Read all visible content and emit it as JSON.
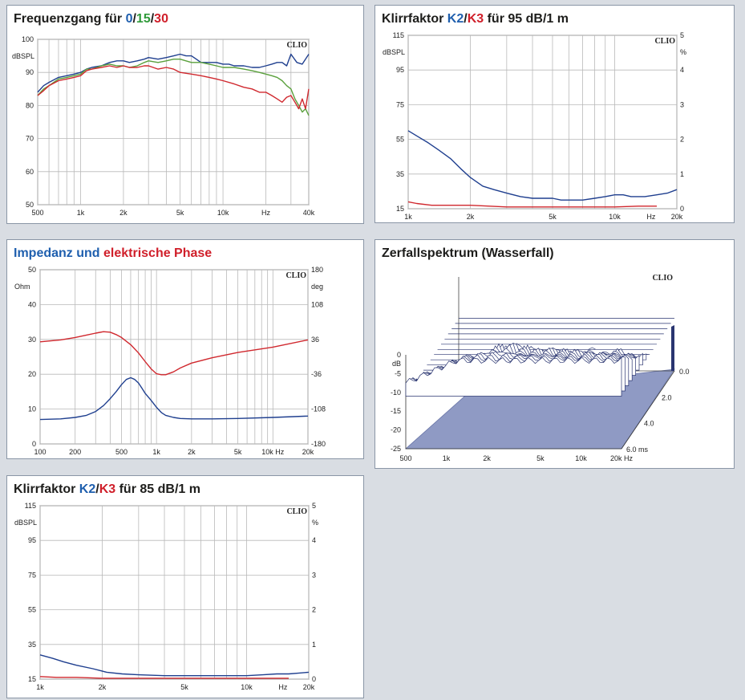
{
  "colors": {
    "blue": "#1f3f8f",
    "green": "#5aa03c",
    "red": "#d0282e",
    "grid": "#b9b9b9",
    "waterfall": "#8f9ac4"
  },
  "panels": {
    "freq": {
      "title_prefix": "Frequenzgang für ",
      "t1": "0",
      "s1": "/",
      "t2": "15",
      "s2": "/",
      "t3": "30",
      "brand": "CLIO"
    },
    "k95": {
      "title_prefix": "Klirrfaktor ",
      "t1": "K2",
      "s1": "/",
      "t2": "K3",
      "title_suffix": " für 95 dB/1 m",
      "brand": "CLIO"
    },
    "imp": {
      "t1": "Impedanz und ",
      "t2": "elektrische Phase",
      "brand": "CLIO"
    },
    "wf": {
      "title": "Zerfallspektrum (Wasserfall)",
      "brand": "CLIO"
    },
    "k85": {
      "title_prefix": "Klirrfaktor ",
      "t1": "K2",
      "s1": "/",
      "t2": "K3",
      "title_suffix": " für 85 dB/1 m",
      "brand": "CLIO"
    }
  },
  "chart_data": [
    {
      "id": "freq",
      "type": "line",
      "xscale": "log",
      "xlim": [
        500,
        40000
      ],
      "ylim": [
        50,
        100
      ],
      "ylabel": "dBSPL",
      "xunit": "Hz",
      "xticks": [
        {
          "v": 500,
          "l": "500"
        },
        {
          "v": 1000,
          "l": "1k"
        },
        {
          "v": 2000,
          "l": "2k"
        },
        {
          "v": 5000,
          "l": "5k"
        },
        {
          "v": 10000,
          "l": "10k"
        },
        {
          "v": 20000,
          "l": "Hz"
        },
        {
          "v": 40000,
          "l": "40k"
        }
      ],
      "yticks": [
        {
          "v": 100,
          "l": "100"
        },
        {
          "v": 90,
          "l": "90"
        },
        {
          "v": 80,
          "l": "80"
        },
        {
          "v": 70,
          "l": "70"
        },
        {
          "v": 60,
          "l": "60"
        },
        {
          "v": 50,
          "l": "50"
        }
      ],
      "series": [
        {
          "name": "0",
          "color": "blue",
          "x": [
            500,
            550,
            600,
            700,
            800,
            900,
            1000,
            1100,
            1200,
            1400,
            1600,
            1800,
            2000,
            2200,
            2500,
            2800,
            3000,
            3500,
            4000,
            4500,
            5000,
            5500,
            6000,
            6500,
            7000,
            8000,
            9000,
            10000,
            11000,
            12000,
            14000,
            16000,
            18000,
            20000,
            22000,
            24000,
            26000,
            28000,
            30000,
            33000,
            36000,
            40000
          ],
          "y": [
            84,
            86,
            87,
            88.5,
            89,
            89.5,
            90,
            91,
            91.5,
            92,
            93,
            93.5,
            93.5,
            93,
            93.5,
            94,
            94.5,
            94,
            94.5,
            95,
            95.5,
            95,
            95,
            94,
            93,
            93,
            93,
            92.5,
            92.5,
            92,
            92,
            91.5,
            91.5,
            92,
            92.5,
            93,
            93,
            92,
            95.5,
            93,
            92.5,
            95.5
          ]
        },
        {
          "name": "15",
          "color": "green",
          "x": [
            500,
            550,
            600,
            700,
            800,
            900,
            1000,
            1100,
            1200,
            1400,
            1600,
            1800,
            2000,
            2200,
            2500,
            2800,
            3000,
            3500,
            4000,
            4500,
            5000,
            6000,
            7000,
            8000,
            9000,
            10000,
            12000,
            14000,
            16000,
            18000,
            20000,
            22000,
            24000,
            26000,
            28000,
            30000,
            32000,
            34000,
            36000,
            38000,
            40000
          ],
          "y": [
            83,
            85,
            86,
            88,
            88.5,
            89,
            89.5,
            91,
            91,
            92,
            92.5,
            92,
            92,
            91.5,
            92,
            93,
            93.5,
            93,
            93.5,
            94,
            94,
            93,
            93,
            92.5,
            92,
            91.5,
            91.5,
            91,
            90.5,
            90,
            89.5,
            89,
            88.5,
            87.5,
            86,
            85,
            82,
            80,
            78,
            79,
            77
          ]
        },
        {
          "name": "30",
          "color": "red",
          "x": [
            500,
            550,
            600,
            700,
            800,
            900,
            1000,
            1100,
            1200,
            1400,
            1600,
            1800,
            2000,
            2200,
            2500,
            2800,
            3000,
            3500,
            4000,
            4500,
            5000,
            6000,
            7000,
            8000,
            9000,
            10000,
            12000,
            14000,
            16000,
            18000,
            20000,
            22000,
            24000,
            26000,
            28000,
            30000,
            32000,
            34000,
            36000,
            38000,
            40000
          ],
          "y": [
            83,
            84.5,
            86,
            87.5,
            88,
            88.5,
            89,
            90.5,
            91,
            91.5,
            92,
            91.5,
            92,
            91.5,
            91.5,
            92,
            92,
            91,
            91.5,
            91,
            90,
            89.5,
            89,
            88.5,
            88,
            87.5,
            86.5,
            85.5,
            85,
            84,
            84,
            83,
            82,
            81,
            82.5,
            83,
            81,
            79,
            82,
            79,
            85
          ]
        }
      ]
    },
    {
      "id": "k95",
      "type": "line",
      "xscale": "log",
      "xlim": [
        1000,
        20000
      ],
      "ylim": [
        15,
        115
      ],
      "y2lim": [
        0,
        5
      ],
      "ylabel": "dBSPL",
      "y2label": "%",
      "xunit": "Hz",
      "xticks": [
        {
          "v": 1000,
          "l": "1k"
        },
        {
          "v": 2000,
          "l": "2k"
        },
        {
          "v": 5000,
          "l": "5k"
        },
        {
          "v": 10000,
          "l": "10k"
        },
        {
          "v": 15000,
          "l": "Hz"
        },
        {
          "v": 20000,
          "l": "20k"
        }
      ],
      "yticks": [
        {
          "v": 115,
          "l": "115"
        },
        {
          "v": 95,
          "l": "95"
        },
        {
          "v": 75,
          "l": "75"
        },
        {
          "v": 55,
          "l": "55"
        },
        {
          "v": 35,
          "l": "35"
        },
        {
          "v": 15,
          "l": "15"
        }
      ],
      "y2ticks": [
        {
          "v": 5,
          "l": "5"
        },
        {
          "v": 4,
          "l": "4"
        },
        {
          "v": 3,
          "l": "3"
        },
        {
          "v": 2,
          "l": "2"
        },
        {
          "v": 1,
          "l": "1"
        },
        {
          "v": 0,
          "l": "0"
        }
      ],
      "series": [
        {
          "name": "K2",
          "color": "blue",
          "x": [
            1000,
            1100,
            1250,
            1400,
            1600,
            1800,
            2000,
            2300,
            2600,
            3000,
            3500,
            4000,
            4500,
            5000,
            5500,
            6000,
            7000,
            8000,
            9000,
            10000,
            11000,
            12000,
            14000,
            16000,
            18000,
            20000
          ],
          "y": [
            60,
            57,
            53,
            49,
            44,
            38,
            33,
            28,
            26,
            24,
            22,
            21,
            21,
            21,
            20,
            20,
            20,
            21,
            22,
            23,
            23,
            22,
            22,
            23,
            24,
            26
          ]
        },
        {
          "name": "K3",
          "color": "red",
          "x": [
            1000,
            1100,
            1300,
            1600,
            2000,
            3000,
            4000,
            6000,
            8000,
            10000,
            13000,
            16000
          ],
          "y": [
            19,
            18,
            17,
            17,
            17,
            16,
            16,
            16,
            16,
            16,
            16.5,
            16.5
          ]
        }
      ]
    },
    {
      "id": "imp",
      "type": "line",
      "xscale": "log",
      "xlim": [
        100,
        20000
      ],
      "ylim": [
        0,
        50
      ],
      "y2lim": [
        -180,
        180
      ],
      "ylabel": "Ohm",
      "y2label": "deg",
      "xticks": [
        {
          "v": 100,
          "l": "100"
        },
        {
          "v": 200,
          "l": "200"
        },
        {
          "v": 500,
          "l": "500"
        },
        {
          "v": 1000,
          "l": "1k"
        },
        {
          "v": 2000,
          "l": "2k"
        },
        {
          "v": 5000,
          "l": "5k"
        },
        {
          "v": 10000,
          "l": "10k Hz"
        },
        {
          "v": 20000,
          "l": "20k"
        }
      ],
      "yticks": [
        {
          "v": 50,
          "l": "50"
        },
        {
          "v": 40,
          "l": "40"
        },
        {
          "v": 30,
          "l": "30"
        },
        {
          "v": 20,
          "l": "20"
        },
        {
          "v": 10,
          "l": "10"
        },
        {
          "v": 0,
          "l": "0"
        }
      ],
      "y2ticks": [
        {
          "v": 180,
          "l": "180"
        },
        {
          "v": 108,
          "l": "108"
        },
        {
          "v": 36,
          "l": "36"
        },
        {
          "v": -36,
          "l": "-36"
        },
        {
          "v": -108,
          "l": "-108"
        },
        {
          "v": -180,
          "l": "-180"
        }
      ],
      "series": [
        {
          "name": "Impedanz",
          "color": "blue",
          "x": [
            100,
            150,
            200,
            250,
            300,
            350,
            400,
            450,
            500,
            550,
            600,
            650,
            700,
            750,
            800,
            900,
            1000,
            1100,
            1200,
            1400,
            1600,
            2000,
            3000,
            5000,
            10000,
            20000
          ],
          "y": [
            7,
            7.2,
            7.6,
            8.2,
            9.3,
            11,
            13,
            15,
            17,
            18.5,
            19,
            18.5,
            17.5,
            16,
            14.5,
            12.5,
            10.5,
            9,
            8.2,
            7.6,
            7.3,
            7.2,
            7.2,
            7.3,
            7.6,
            8
          ]
        },
        {
          "name": "Phase",
          "color": "red",
          "y2": true,
          "x": [
            100,
            150,
            200,
            250,
            300,
            350,
            400,
            450,
            500,
            600,
            700,
            800,
            900,
            1000,
            1100,
            1200,
            1400,
            1600,
            2000,
            3000,
            5000,
            10000,
            20000
          ],
          "y": [
            31,
            35,
            40,
            45,
            49,
            52,
            51,
            46,
            40,
            25,
            8,
            -10,
            -25,
            -35,
            -37,
            -37,
            -31,
            -23,
            -13,
            -2,
            9,
            20,
            35
          ]
        }
      ]
    },
    {
      "id": "waterfall",
      "type": "area",
      "xscale": "log",
      "xlim": [
        500,
        20000
      ],
      "ylim": [
        -25,
        0
      ],
      "ylabel": "dB",
      "xticks": [
        {
          "v": 500,
          "l": "500"
        },
        {
          "v": 1000,
          "l": "1k"
        },
        {
          "v": 2000,
          "l": "2k"
        },
        {
          "v": 5000,
          "l": "5k"
        },
        {
          "v": 10000,
          "l": "10k"
        },
        {
          "v": 20000,
          "l": "20k Hz"
        }
      ],
      "yticks": [
        {
          "v": 0,
          "l": "0"
        },
        {
          "v": -5,
          "l": "-5"
        },
        {
          "v": -10,
          "l": "-10"
        },
        {
          "v": -15,
          "l": "-15"
        },
        {
          "v": -20,
          "l": "-20"
        },
        {
          "v": -25,
          "l": "-25"
        }
      ],
      "zticks": [
        {
          "v": 0.0,
          "l": "0.0"
        },
        {
          "v": 2.0,
          "l": "2.0"
        },
        {
          "v": 4.0,
          "l": "4.0"
        },
        {
          "v": 6.0,
          "l": "6.0 ms"
        }
      ]
    },
    {
      "id": "k85",
      "type": "line",
      "xscale": "log",
      "xlim": [
        1000,
        20000
      ],
      "ylim": [
        15,
        115
      ],
      "y2lim": [
        0,
        5
      ],
      "ylabel": "dBSPL",
      "y2label": "%",
      "xunit": "Hz",
      "xticks": [
        {
          "v": 1000,
          "l": "1k"
        },
        {
          "v": 2000,
          "l": "2k"
        },
        {
          "v": 5000,
          "l": "5k"
        },
        {
          "v": 10000,
          "l": "10k"
        },
        {
          "v": 15000,
          "l": "Hz"
        },
        {
          "v": 20000,
          "l": "20k"
        }
      ],
      "yticks": [
        {
          "v": 115,
          "l": "115"
        },
        {
          "v": 95,
          "l": "95"
        },
        {
          "v": 75,
          "l": "75"
        },
        {
          "v": 55,
          "l": "55"
        },
        {
          "v": 35,
          "l": "35"
        },
        {
          "v": 15,
          "l": "15"
        }
      ],
      "y2ticks": [
        {
          "v": 5,
          "l": "5"
        },
        {
          "v": 4,
          "l": "4"
        },
        {
          "v": 3,
          "l": "3"
        },
        {
          "v": 2,
          "l": "2"
        },
        {
          "v": 1,
          "l": "1"
        },
        {
          "v": 0,
          "l": "0"
        }
      ],
      "series": [
        {
          "name": "K2",
          "color": "blue",
          "x": [
            1000,
            1150,
            1300,
            1500,
            1800,
            2100,
            2500,
            3000,
            4000,
            5000,
            6000,
            7000,
            8000,
            10000,
            12000,
            14000,
            16000,
            18000,
            20000
          ],
          "y": [
            29,
            27,
            25,
            23,
            21,
            19,
            18,
            17.5,
            17,
            17,
            17,
            17,
            17,
            17,
            17.5,
            18,
            18,
            18.5,
            19
          ]
        },
        {
          "name": "K3",
          "color": "red",
          "x": [
            1000,
            1200,
            1500,
            2000,
            3000,
            5000,
            8000,
            12000,
            16000
          ],
          "y": [
            16.5,
            16,
            16,
            15.5,
            15.5,
            15.5,
            15.5,
            15.5,
            15.5
          ]
        }
      ]
    }
  ]
}
